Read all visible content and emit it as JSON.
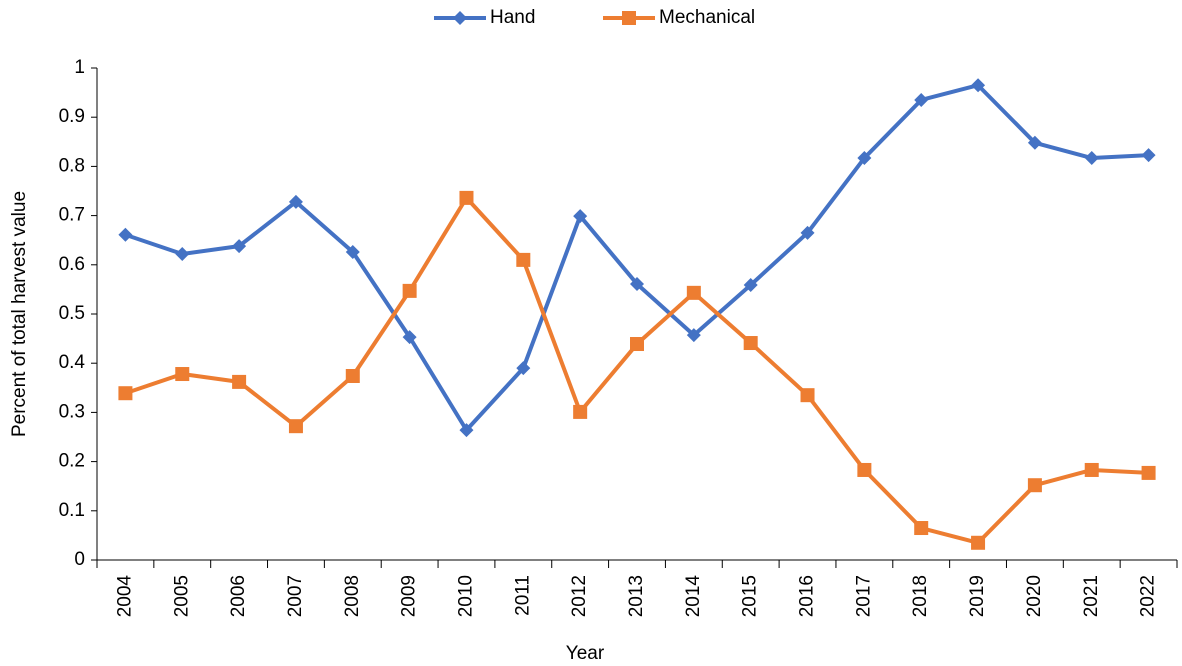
{
  "chart_data": {
    "type": "line",
    "x_label": "Year",
    "y_label": "Percent of total harvest value",
    "categories": [
      "2004",
      "2005",
      "2006",
      "2007",
      "2008",
      "2009",
      "2010",
      "2011",
      "2012",
      "2013",
      "2014",
      "2015",
      "2016",
      "2017",
      "2018",
      "2019",
      "2020",
      "2021",
      "2022"
    ],
    "series": [
      {
        "name": "Hand",
        "color": "#4472c4",
        "marker": "diamond",
        "values": [
          0.661,
          0.622,
          0.638,
          0.728,
          0.626,
          0.453,
          0.264,
          0.39,
          0.699,
          0.561,
          0.457,
          0.559,
          0.665,
          0.817,
          0.935,
          0.965,
          0.848,
          0.817,
          0.823
        ]
      },
      {
        "name": "Mechanical",
        "color": "#ed7d31",
        "marker": "square",
        "values": [
          0.339,
          0.378,
          0.362,
          0.272,
          0.374,
          0.547,
          0.736,
          0.61,
          0.301,
          0.439,
          0.543,
          0.441,
          0.335,
          0.183,
          0.065,
          0.035,
          0.152,
          0.183,
          0.177
        ]
      }
    ],
    "ylim": [
      0,
      1
    ],
    "yticks": [
      0,
      0.1,
      0.2,
      0.3,
      0.4,
      0.5,
      0.6,
      0.7,
      0.8,
      0.9,
      1
    ],
    "legend": "top",
    "grid": false
  }
}
